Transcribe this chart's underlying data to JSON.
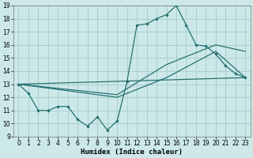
{
  "xlabel": "Humidex (Indice chaleur)",
  "bg_color": "#cce8e8",
  "grid_color": "#aacfcf",
  "line_color": "#1f6b6b",
  "xlim": [
    -0.5,
    23.5
  ],
  "ylim": [
    9,
    19
  ],
  "xticks": [
    0,
    1,
    2,
    3,
    4,
    5,
    6,
    7,
    8,
    9,
    10,
    11,
    12,
    13,
    14,
    15,
    16,
    17,
    18,
    19,
    20,
    21,
    22,
    23
  ],
  "yticks": [
    9,
    10,
    11,
    12,
    13,
    14,
    15,
    16,
    17,
    18,
    19
  ],
  "series_main": {
    "x": [
      0,
      1,
      2,
      3,
      4,
      5,
      6,
      7,
      8,
      9,
      10,
      11,
      12,
      13,
      14,
      15,
      16,
      17,
      18,
      19,
      20,
      21,
      22,
      23
    ],
    "y": [
      13,
      12.3,
      11,
      11,
      11.3,
      11.3,
      10.3,
      9.8,
      10.5,
      9.5,
      10.2,
      13.2,
      17.5,
      17.6,
      18,
      18.3,
      19.0,
      17.5,
      16,
      15.9,
      15.3,
      14.4,
      13.8,
      13.5
    ]
  },
  "trend_lines": [
    {
      "x": [
        0,
        10,
        15,
        20,
        23
      ],
      "y": [
        13,
        12.0,
        13.5,
        15.5,
        13.5
      ]
    },
    {
      "x": [
        0,
        10,
        15,
        20,
        23
      ],
      "y": [
        13,
        12.2,
        14.5,
        16.0,
        15.5
      ]
    },
    {
      "x": [
        0,
        23
      ],
      "y": [
        13,
        13.5
      ]
    }
  ],
  "xlabel_fontsize": 6.5,
  "tick_fontsize": 5.5
}
